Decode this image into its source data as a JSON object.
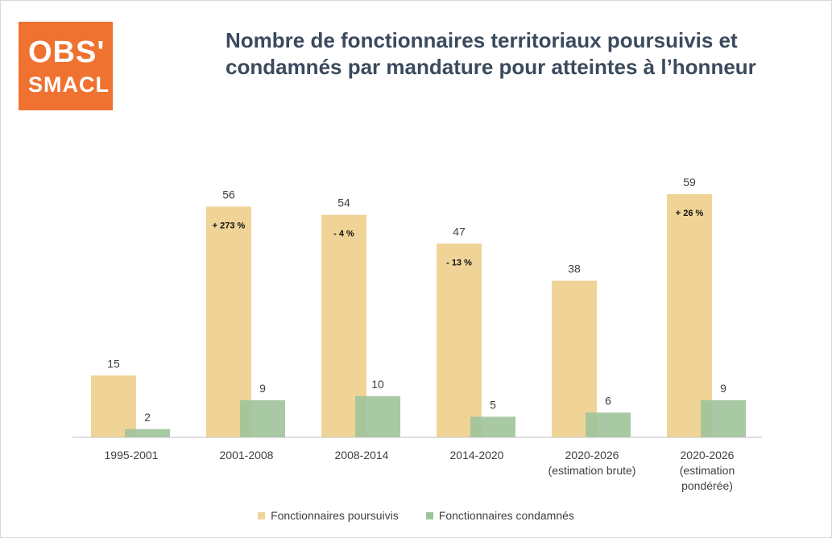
{
  "logo": {
    "line1": "OBS'",
    "line2": "SMACL"
  },
  "title": {
    "line1": "Nombre de fonctionnaires territoriaux poursuivis et",
    "line2": "condamnés par mandature pour atteintes à l’honneur"
  },
  "colors": {
    "poursuivis": "#f0d497",
    "condamnes": "#9fc39a",
    "logo_bg": "#ef7231",
    "title": "#3b4a5d"
  },
  "chart_data": {
    "type": "bar",
    "title": "Nombre de fonctionnaires territoriaux poursuivis et condamnés par mandature pour atteintes à l’honneur",
    "categories": [
      [
        "1995-2001"
      ],
      [
        "2001-2008"
      ],
      [
        "2008-2014"
      ],
      [
        "2014-2020"
      ],
      [
        "2020-2026",
        "(estimation brute)"
      ],
      [
        "2020-2026",
        "(estimation",
        "pondérée)"
      ]
    ],
    "series": [
      {
        "name": "Fonctionnaires poursuivis",
        "values": [
          15,
          56,
          54,
          47,
          38,
          59
        ]
      },
      {
        "name": "Fonctionnaires condamnés",
        "values": [
          2,
          9,
          10,
          5,
          6,
          9
        ]
      }
    ],
    "annotations": [
      "",
      "+ 273 %",
      "- 4 %",
      "- 13 %",
      "",
      "+ 26 %"
    ],
    "ylim": [
      0,
      60
    ],
    "legend": "bottom",
    "grid": false
  }
}
